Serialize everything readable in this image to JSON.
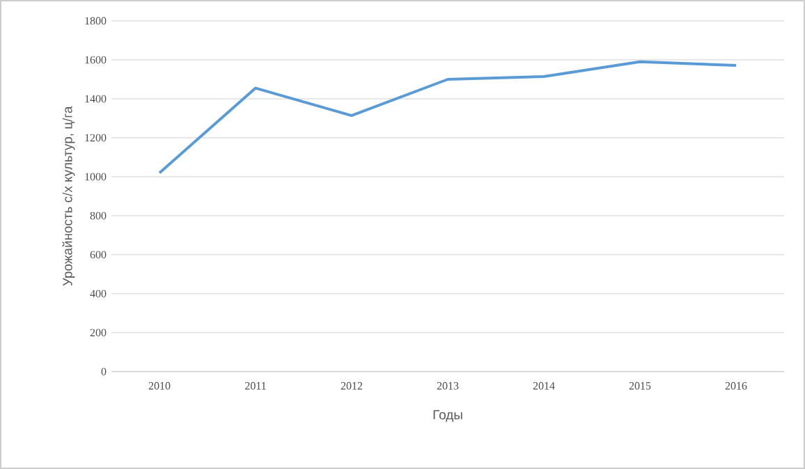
{
  "chart_data": {
    "type": "line",
    "xlabel": "Годы",
    "ylabel": "Урожайность с/х культур, ц/га",
    "categories": [
      "2010",
      "2011",
      "2012",
      "2013",
      "2014",
      "2015",
      "2016"
    ],
    "series": [
      {
        "color": "#5b9bd5",
        "values": [
          1020,
          1455,
          1314,
          1500,
          1514,
          1590,
          1571
        ]
      }
    ],
    "ylim": [
      0,
      1800
    ],
    "yticks": [
      0,
      200,
      400,
      600,
      800,
      1000,
      1200,
      1400,
      1600,
      1800
    ],
    "grid": "y",
    "marker": "none",
    "line_style": "solid"
  }
}
